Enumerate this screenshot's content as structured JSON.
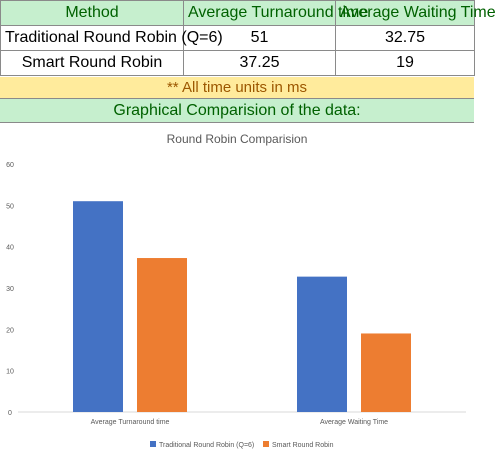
{
  "table": {
    "headers": [
      "Method",
      "Average Turnaround time",
      "Average Waiting Time"
    ],
    "rows": [
      {
        "method": "Traditional Round Robin (Q=6)",
        "turnaround": "51",
        "waiting": "32.75"
      },
      {
        "method": "Smart Round Robin",
        "turnaround": "37.25",
        "waiting": "19"
      }
    ],
    "header_bg": "#c6efce",
    "header_text": "#006100"
  },
  "note": "** All time units in ms",
  "banner": "Graphical Comparision of the data:",
  "chart_data": {
    "type": "bar",
    "title": "Round Robin Comparision",
    "categories": [
      "Average Turnaround time",
      "Average Waiting Time"
    ],
    "series": [
      {
        "name": "Traditional Round Robin (Q=6)",
        "values": [
          51,
          32.75
        ],
        "color": "#4472c4"
      },
      {
        "name": "Smart Round Robin",
        "values": [
          37.25,
          19
        ],
        "color": "#ed7d31"
      }
    ],
    "ylim": [
      0,
      60
    ],
    "yticks": [
      "0",
      "10",
      "20",
      "30",
      "40",
      "50",
      "60"
    ],
    "grid": false,
    "legend": "bottom"
  }
}
